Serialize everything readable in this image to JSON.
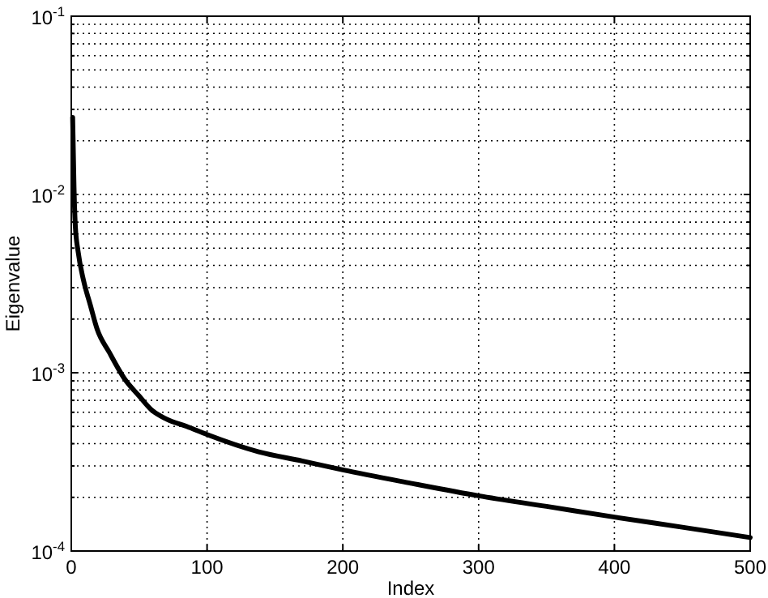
{
  "chart_data": {
    "type": "line",
    "xlabel": "Index",
    "ylabel": "Eigenvalue",
    "log": "y",
    "grid": true,
    "marker": "none",
    "line_style": "solid",
    "xlim": [
      0,
      500
    ],
    "xticks": [
      0,
      100,
      200,
      300,
      400,
      500
    ],
    "ylim": [
      0.0001,
      0.1
    ],
    "yticks": [
      {
        "value": 0.0001,
        "label": "10$^{-4}$"
      },
      {
        "value": 0.0002,
        "label": null
      },
      {
        "value": 0.0003,
        "label": null
      },
      {
        "value": 0.0004,
        "label": null
      },
      {
        "value": 0.0005,
        "label": null
      },
      {
        "value": 0.0006,
        "label": null
      },
      {
        "value": 0.0007,
        "label": null
      },
      {
        "value": 0.0008,
        "label": null
      },
      {
        "value": 0.0009,
        "label": null
      },
      {
        "value": 0.001,
        "label": "10$^{-3}$"
      },
      {
        "value": 0.002,
        "label": null
      },
      {
        "value": 0.003,
        "label": null
      },
      {
        "value": 0.004,
        "label": null
      },
      {
        "value": 0.005,
        "label": null
      },
      {
        "value": 0.006,
        "label": null
      },
      {
        "value": 0.007,
        "label": null
      },
      {
        "value": 0.008,
        "label": null
      },
      {
        "value": 0.009,
        "label": null
      },
      {
        "value": 0.01,
        "label": "10$^{-2}$"
      },
      {
        "value": 0.02,
        "label": null
      },
      {
        "value": 0.03,
        "label": null
      },
      {
        "value": 0.04,
        "label": null
      },
      {
        "value": 0.05,
        "label": null
      },
      {
        "value": 0.06,
        "label": null
      },
      {
        "value": 0.07,
        "label": null
      },
      {
        "value": 0.08,
        "label": null
      },
      {
        "value": 0.09,
        "label": null
      },
      {
        "value": 0.1,
        "label": "10$^{-1}$"
      }
    ],
    "series": [
      {
        "color": "#000000",
        "x": [
          1,
          2,
          3,
          5,
          9,
          14,
          19,
          28,
          39,
          50,
          59,
          70,
          85,
          100,
          138,
          170,
          200,
          250,
          300,
          350,
          400,
          450,
          500
        ],
        "values": [
          0.027,
          0.011,
          0.0066,
          0.0048,
          0.0033,
          0.0024,
          0.00176,
          0.0013,
          0.00093,
          0.00074,
          0.00062,
          0.00055,
          0.0005,
          0.00045,
          0.00036,
          0.00032,
          0.000285,
          0.00024,
          0.000204,
          0.000178,
          0.000155,
          0.000136,
          0.000119
        ]
      }
    ]
  }
}
